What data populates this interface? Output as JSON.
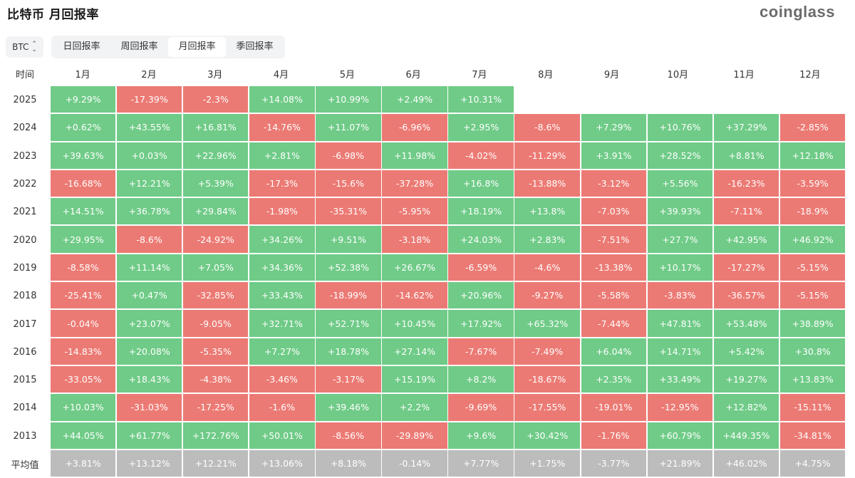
{
  "title": "比特币 月回报率",
  "logo": "coinglass",
  "selector": {
    "value": "BTC"
  },
  "tabs": [
    {
      "label": "日回报率",
      "active": false
    },
    {
      "label": "周回报率",
      "active": false
    },
    {
      "label": "月回报率",
      "active": true
    },
    {
      "label": "季回报率",
      "active": false
    }
  ],
  "colors": {
    "positive": "#6fcb87",
    "negative": "#ec7a74",
    "average": "#bcbcbc"
  },
  "table": {
    "corner": "时间",
    "months": [
      "1月",
      "2月",
      "3月",
      "4月",
      "5月",
      "6月",
      "7月",
      "8月",
      "9月",
      "10月",
      "11月",
      "12月"
    ],
    "rows": [
      {
        "year": "2025",
        "values": [
          "+9.29%",
          "-17.39%",
          "-2.3%",
          "+14.08%",
          "+10.99%",
          "+2.49%",
          "+10.31%",
          "",
          "",
          "",
          "",
          ""
        ]
      },
      {
        "year": "2024",
        "values": [
          "+0.62%",
          "+43.55%",
          "+16.81%",
          "-14.76%",
          "+11.07%",
          "-6.96%",
          "+2.95%",
          "-8.6%",
          "+7.29%",
          "+10.76%",
          "+37.29%",
          "-2.85%"
        ]
      },
      {
        "year": "2023",
        "values": [
          "+39.63%",
          "+0.03%",
          "+22.96%",
          "+2.81%",
          "-6.98%",
          "+11.98%",
          "-4.02%",
          "-11.29%",
          "+3.91%",
          "+28.52%",
          "+8.81%",
          "+12.18%"
        ]
      },
      {
        "year": "2022",
        "values": [
          "-16.68%",
          "+12.21%",
          "+5.39%",
          "-17.3%",
          "-15.6%",
          "-37.28%",
          "+16.8%",
          "-13.88%",
          "-3.12%",
          "+5.56%",
          "-16.23%",
          "-3.59%"
        ]
      },
      {
        "year": "2021",
        "values": [
          "+14.51%",
          "+36.78%",
          "+29.84%",
          "-1.98%",
          "-35.31%",
          "-5.95%",
          "+18.19%",
          "+13.8%",
          "-7.03%",
          "+39.93%",
          "-7.11%",
          "-18.9%"
        ]
      },
      {
        "year": "2020",
        "values": [
          "+29.95%",
          "-8.6%",
          "-24.92%",
          "+34.26%",
          "+9.51%",
          "-3.18%",
          "+24.03%",
          "+2.83%",
          "-7.51%",
          "+27.7%",
          "+42.95%",
          "+46.92%"
        ]
      },
      {
        "year": "2019",
        "values": [
          "-8.58%",
          "+11.14%",
          "+7.05%",
          "+34.36%",
          "+52.38%",
          "+26.67%",
          "-6.59%",
          "-4.6%",
          "-13.38%",
          "+10.17%",
          "-17.27%",
          "-5.15%"
        ]
      },
      {
        "year": "2018",
        "values": [
          "-25.41%",
          "+0.47%",
          "-32.85%",
          "+33.43%",
          "-18.99%",
          "-14.62%",
          "+20.96%",
          "-9.27%",
          "-5.58%",
          "-3.83%",
          "-36.57%",
          "-5.15%"
        ]
      },
      {
        "year": "2017",
        "values": [
          "-0.04%",
          "+23.07%",
          "-9.05%",
          "+32.71%",
          "+52.71%",
          "+10.45%",
          "+17.92%",
          "+65.32%",
          "-7.44%",
          "+47.81%",
          "+53.48%",
          "+38.89%"
        ]
      },
      {
        "year": "2016",
        "values": [
          "-14.83%",
          "+20.08%",
          "-5.35%",
          "+7.27%",
          "+18.78%",
          "+27.14%",
          "-7.67%",
          "-7.49%",
          "+6.04%",
          "+14.71%",
          "+5.42%",
          "+30.8%"
        ]
      },
      {
        "year": "2015",
        "values": [
          "-33.05%",
          "+18.43%",
          "-4.38%",
          "-3.46%",
          "-3.17%",
          "+15.19%",
          "+8.2%",
          "-18.67%",
          "+2.35%",
          "+33.49%",
          "+19.27%",
          "+13.83%"
        ]
      },
      {
        "year": "2014",
        "values": [
          "+10.03%",
          "-31.03%",
          "-17.25%",
          "-1.6%",
          "+39.46%",
          "+2.2%",
          "-9.69%",
          "-17.55%",
          "-19.01%",
          "-12.95%",
          "+12.82%",
          "-15.11%"
        ]
      },
      {
        "year": "2013",
        "values": [
          "+44.05%",
          "+61.77%",
          "+172.76%",
          "+50.01%",
          "-8.56%",
          "-29.89%",
          "+9.6%",
          "+30.42%",
          "-1.76%",
          "+60.79%",
          "+449.35%",
          "-34.81%"
        ]
      }
    ],
    "average": {
      "label": "平均值",
      "values": [
        "+3.81%",
        "+13.12%",
        "+12.21%",
        "+13.06%",
        "+8.18%",
        "-0.14%",
        "+7.77%",
        "+1.75%",
        "-3.77%",
        "+21.89%",
        "+46.02%",
        "+4.75%"
      ]
    }
  }
}
